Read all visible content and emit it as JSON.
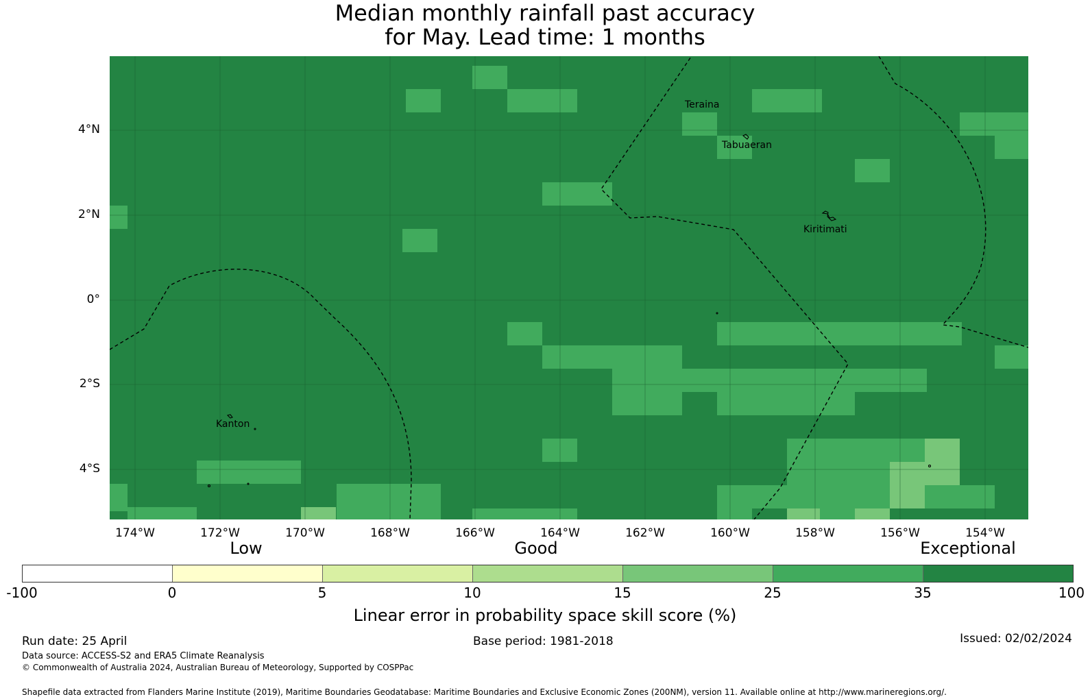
{
  "title": {
    "line1": "Median monthly rainfall past accuracy",
    "line2": "for May. Lead time: 1 months"
  },
  "map": {
    "lat_labels": [
      "4°N",
      "2°N",
      "0°",
      "2°S",
      "4°S"
    ],
    "lon_labels": [
      "174°W",
      "172°W",
      "170°W",
      "168°W",
      "166°W",
      "164°W",
      "162°W",
      "160°W",
      "158°W",
      "156°W",
      "154°W"
    ],
    "places": [
      "Teraina",
      "Tabuaeran",
      "Kiritimati",
      "Kanton"
    ],
    "colors": {
      "exceptional": "#238443",
      "high": "#41ab5d",
      "mid": "#78c679",
      "border": "#000000"
    }
  },
  "legend": {
    "categories": [
      "Low",
      "Good",
      "Exceptional"
    ],
    "ticks": [
      "-100",
      "0",
      "5",
      "10",
      "15",
      "25",
      "35",
      "100"
    ],
    "colors": [
      "#ffffff",
      "#ffffcc",
      "#d9f0a3",
      "#addd8e",
      "#78c679",
      "#41ab5d",
      "#238443"
    ],
    "label": "Linear error in probability space skill score (%)"
  },
  "footer": {
    "run_date": "Run date: 25 April",
    "base_period": "Base period: 1981-2018",
    "issued": "Issued: 02/02/2024",
    "data_source": "Data source: ACCESS-S2 and ERA5 Climate Reanalysis",
    "copyright": "© Commonwealth of Australia 2024, Australian Bureau of Meteorology, Supported by COSPPac",
    "shapefile": "Shapefile data extracted from Flanders Marine Institute (2019), Maritime Boundaries Geodatabase: Maritime Boundaries and Exclusive Economic Zones (200NM), version 11. Available online at http://www.marineregions.org/."
  }
}
